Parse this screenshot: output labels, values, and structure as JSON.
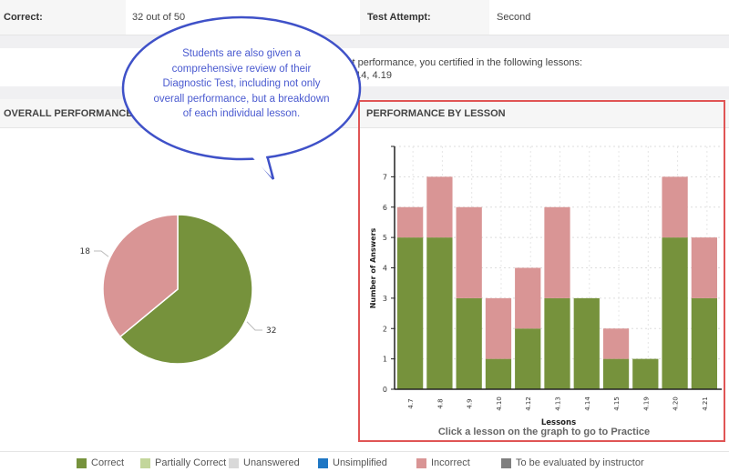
{
  "summary": {
    "correct_label": "Correct:",
    "correct_value": "32 out of 50",
    "attempt_label": "Test Attempt:",
    "attempt_value": "Second"
  },
  "certification": {
    "line1": "st performance, you certified in the following lessons:",
    "line2": "4.14, 4.19"
  },
  "callout": {
    "lines": [
      "Students are also given a",
      "comprehensive review of their",
      "Diagnostic Test, including not only",
      "overall performance, but a breakdown",
      "of each individual lesson."
    ]
  },
  "overall": {
    "title": "OVERALL PERFORMANCE"
  },
  "by_lesson": {
    "title": "PERFORMANCE BY LESSON",
    "instruction": "Click a lesson on the graph to go to Practice"
  },
  "colors": {
    "correct": "#76923c",
    "incorrect": "#d99595",
    "partially_correct": "#c3d69b",
    "unanswered": "#d9d9d9",
    "unsimplified": "#1f77c4",
    "to_be_evaluated": "#7f7f7f",
    "highlight": "#e05555",
    "callout": "#3f51c8"
  },
  "legend": [
    {
      "label": "Correct",
      "color": "#76923c"
    },
    {
      "label": "Partially Correct",
      "color": "#c3d69b"
    },
    {
      "label": "Unanswered",
      "color": "#d9d9d9"
    },
    {
      "label": "Unsimplified",
      "color": "#1f77c4"
    },
    {
      "label": "Incorrect",
      "color": "#d99595"
    },
    {
      "label": "To be evaluated by instructor",
      "color": "#7f7f7f"
    }
  ],
  "chart_data": [
    {
      "type": "pie",
      "labels": [
        "Correct",
        "Incorrect"
      ],
      "values": [
        32,
        18
      ],
      "data_labels": [
        "32",
        "18"
      ]
    },
    {
      "type": "bar",
      "stacked": true,
      "xlabel": "Lessons",
      "ylabel": "Number of Answers",
      "ylim": [
        0,
        8
      ],
      "yticks": [
        "0",
        "1",
        "2",
        "3",
        "4",
        "5",
        "6",
        "7"
      ],
      "grid": true,
      "categories": [
        "4.7",
        "4.8",
        "4.9",
        "4.10",
        "4.12",
        "4.13",
        "4.14",
        "4.15",
        "4.19",
        "4.20",
        "4.21"
      ],
      "series": [
        {
          "name": "Correct",
          "values": [
            5,
            5,
            3,
            1,
            2,
            3,
            3,
            1,
            1,
            5,
            3
          ]
        },
        {
          "name": "Incorrect",
          "values": [
            1,
            2,
            3,
            2,
            2,
            3,
            0,
            1,
            0,
            2,
            2
          ]
        }
      ]
    }
  ]
}
